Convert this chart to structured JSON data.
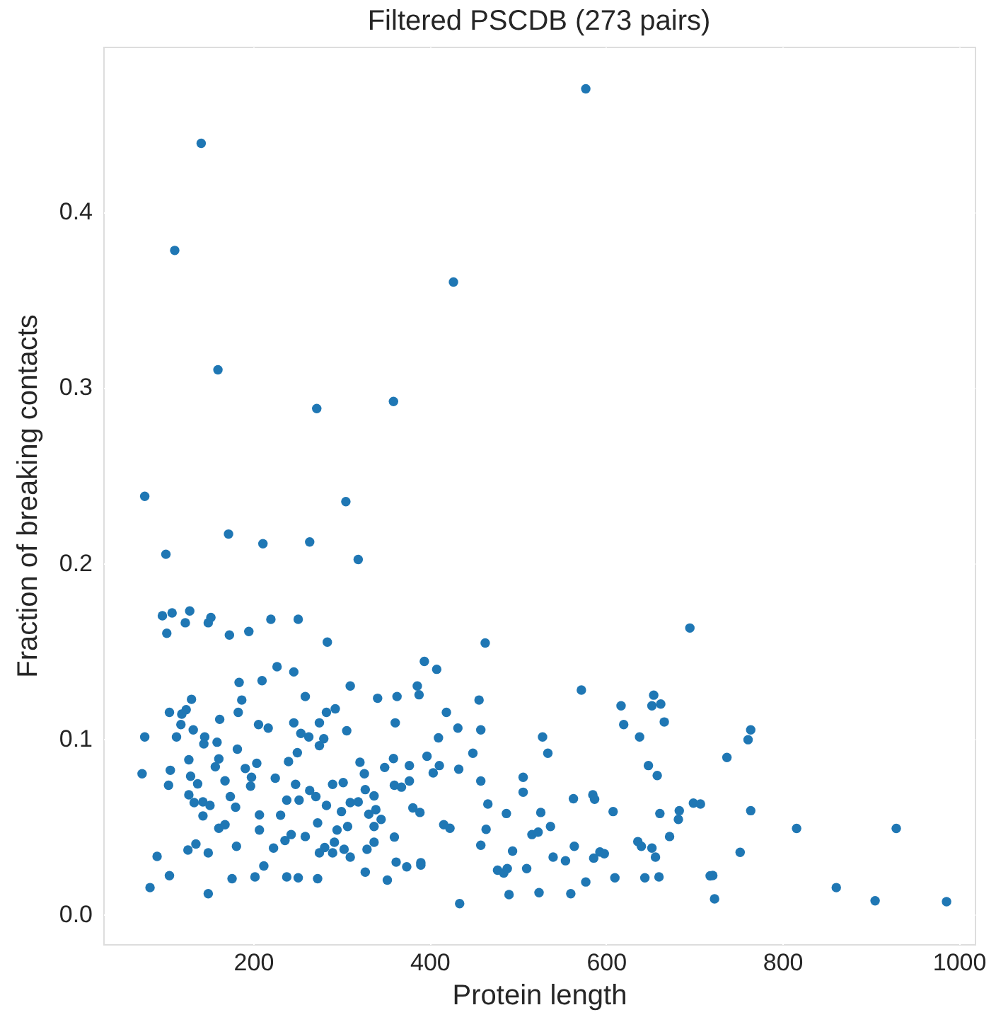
{
  "chart_data": {
    "type": "scatter",
    "title": "Filtered PSCDB (273 pairs)",
    "xlabel": "Protein length",
    "ylabel": "Fraction of breaking contacts",
    "xlim": [
      30,
      1018
    ],
    "ylim": [
      -0.017,
      0.494
    ],
    "xticks": [
      200,
      400,
      600,
      800,
      1000
    ],
    "yticks": [
      {
        "value": 0,
        "label": "0.0"
      },
      {
        "value": 0.1,
        "label": "0.1"
      },
      {
        "value": 0.2,
        "label": "0.2"
      },
      {
        "value": 0.3,
        "label": "0.3"
      },
      {
        "value": 0.4,
        "label": "0.4"
      }
    ],
    "grid": true,
    "marker": "circle",
    "series": [
      {
        "color": "#1f77b4",
        "x": [
          141,
          111,
          427,
          160,
          272,
          359,
          77,
          305,
          577,
          172,
          101,
          211,
          264,
          319,
          97,
          108,
          128,
          123,
          102,
          149,
          152,
          173,
          195,
          220,
          251,
          284,
          227,
          246,
          184,
          210,
          310,
          259,
          187,
          130,
          105,
          124,
          119,
          183,
          162,
          118,
          283,
          293,
          341,
          363,
          361,
          246,
          275,
          206,
          217,
          77,
          113,
          132,
          145,
          144,
          159,
          254,
          263,
          280,
          275,
          306,
          74,
          106,
          104,
          127,
          129,
          137,
          127,
          133,
          143,
          143,
          151,
          161,
          157,
          182,
          168,
          174,
          180,
          161,
          168,
          191,
          198,
          204,
          197,
          225,
          240,
          250,
          248,
          238,
          252,
          264,
          271,
          283,
          290,
          302,
          300,
          310,
          319,
          321,
          326,
          327,
          337,
          331,
          339,
          349,
          359,
          360,
          368,
          345,
          337,
          307,
          337,
          329,
          360,
          362,
          327,
          352,
          310,
          303,
          292,
          281,
          275,
          290,
          295,
          273,
          259,
          243,
          236,
          223,
          207,
          212,
          202,
          176,
          181,
          135,
          126,
          149,
          91,
          105,
          83,
          149,
          238,
          251,
          273,
          207,
          231,
          394,
          408,
          386,
          388,
          463,
          419,
          456,
          432,
          458,
          410,
          449,
          397,
          377,
          411,
          404,
          433,
          377,
          458,
          381,
          389,
          466,
          416,
          423,
          464,
          458,
          374,
          390,
          390,
          434,
          487,
          506,
          506,
          494,
          477,
          484,
          488,
          490,
          510,
          516,
          523,
          526,
          524,
          528,
          534,
          537,
          540,
          554,
          560,
          563,
          564,
          572,
          577,
          585,
          587,
          586,
          593,
          598,
          608,
          610,
          617,
          620,
          638,
          636,
          640,
          644,
          648,
          652,
          654,
          662,
          666,
          658,
          661,
          652,
          656,
          660,
          672,
          682,
          683,
          695,
          764,
          761,
          737,
          699,
          707,
          764,
          752,
          718,
          721,
          723,
          816,
          929,
          861,
          905,
          986
        ],
        "values": [
          0.439,
          0.378,
          0.36,
          0.31,
          0.288,
          0.292,
          0.238,
          0.235,
          0.47,
          0.2165,
          0.205,
          0.211,
          0.212,
          0.202,
          0.17,
          0.1716,
          0.1727,
          0.166,
          0.16,
          0.166,
          0.169,
          0.159,
          0.161,
          0.168,
          0.168,
          0.155,
          0.141,
          0.138,
          0.132,
          0.133,
          0.13,
          0.124,
          0.122,
          0.1224,
          0.115,
          0.1165,
          0.114,
          0.115,
          0.111,
          0.108,
          0.115,
          0.117,
          0.123,
          0.124,
          0.109,
          0.109,
          0.109,
          0.108,
          0.106,
          0.101,
          0.101,
          0.105,
          0.101,
          0.097,
          0.098,
          0.103,
          0.101,
          0.1,
          0.096,
          0.1045,
          0.08,
          0.082,
          0.0735,
          0.088,
          0.0786,
          0.0743,
          0.068,
          0.0636,
          0.064,
          0.056,
          0.062,
          0.0885,
          0.084,
          0.094,
          0.076,
          0.067,
          0.061,
          0.049,
          0.051,
          0.083,
          0.078,
          0.086,
          0.073,
          0.0775,
          0.087,
          0.092,
          0.074,
          0.065,
          0.065,
          0.0705,
          0.067,
          0.062,
          0.074,
          0.075,
          0.0585,
          0.0636,
          0.064,
          0.0866,
          0.08,
          0.071,
          0.0674,
          0.057,
          0.0596,
          0.0836,
          0.0887,
          0.0735,
          0.0724,
          0.054,
          0.05,
          0.05,
          0.041,
          0.037,
          0.044,
          0.0297,
          0.024,
          0.0195,
          0.0326,
          0.037,
          0.041,
          0.038,
          0.035,
          0.035,
          0.048,
          0.052,
          0.0443,
          0.0454,
          0.042,
          0.0377,
          0.048,
          0.0275,
          0.0213,
          0.0203,
          0.0387,
          0.04,
          0.0366,
          0.035,
          0.033,
          0.022,
          0.0152,
          0.0117,
          0.0213,
          0.0208,
          0.0203,
          0.0566,
          0.0564,
          0.144,
          0.1395,
          0.13,
          0.125,
          0.1545,
          0.115,
          0.122,
          0.106,
          0.105,
          0.1005,
          0.0917,
          0.09,
          0.0847,
          0.0847,
          0.0805,
          0.0826,
          0.0759,
          0.0759,
          0.0606,
          0.058,
          0.0628,
          0.051,
          0.049,
          0.0484,
          0.0393,
          0.027,
          0.0294,
          0.028,
          0.0061,
          0.0574,
          0.078,
          0.0695,
          0.036,
          0.0251,
          0.0235,
          0.026,
          0.0112,
          0.026,
          0.0454,
          0.0468,
          0.058,
          0.0123,
          0.101,
          0.0917,
          0.05,
          0.0326,
          0.0305,
          0.0117,
          0.0658,
          0.0387,
          0.1277,
          0.0184,
          0.068,
          0.0655,
          0.032,
          0.0355,
          0.0345,
          0.0585,
          0.0208,
          0.1187,
          0.108,
          0.101,
          0.0414,
          0.0387,
          0.0208,
          0.0847,
          0.1187,
          0.1248,
          0.1197,
          0.1095,
          0.079,
          0.0574,
          0.0377,
          0.0326,
          0.0213,
          0.0443,
          0.054,
          0.059,
          0.163,
          0.105,
          0.0994,
          0.0893,
          0.0633,
          0.0628,
          0.059,
          0.0353,
          0.0219,
          0.0221,
          0.0088,
          0.0489,
          0.0489,
          0.0152,
          0.0077,
          0.0072
        ]
      }
    ]
  }
}
